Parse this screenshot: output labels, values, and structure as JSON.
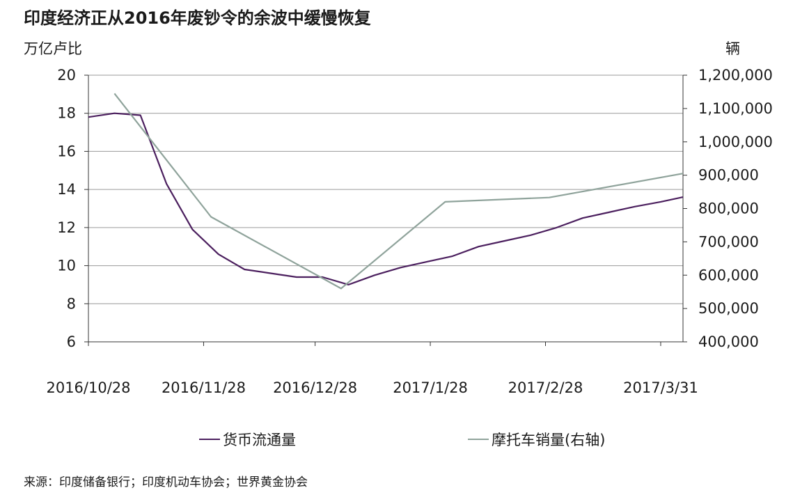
{
  "chart_data": {
    "type": "line",
    "title": "印度经济正从2016年废钞令的余波中缓慢恢复",
    "ylabel_left": "万亿卢比",
    "ylabel_right": "辆",
    "ylim_left": [
      6,
      20
    ],
    "yticks_left": [
      "6",
      "8",
      "10",
      "12",
      "14",
      "16",
      "18",
      "20"
    ],
    "ylim_right": [
      400000,
      1200000
    ],
    "yticks_right": [
      "400,000",
      "500,000",
      "600,000",
      "700,000",
      "800,000",
      "900,000",
      "1,000,000",
      "1,100,000",
      "1,200,000"
    ],
    "xlim": [
      "2016-10-28",
      "2017-04-06"
    ],
    "xticks": [
      {
        "date": "2016-10-28",
        "label": "2016/10/28"
      },
      {
        "date": "2016-11-28",
        "label": "2016/11/28"
      },
      {
        "date": "2016-12-28",
        "label": "2016/12/28"
      },
      {
        "date": "2017-01-28",
        "label": "2017/1/28"
      },
      {
        "date": "2017-02-28",
        "label": "2017/2/28"
      },
      {
        "date": "2017-03-31",
        "label": "2017/3/31"
      }
    ],
    "grid": true,
    "legend_position": "bottom",
    "series": [
      {
        "name": "货币流通量",
        "axis": "left",
        "color": "#4b1f5e",
        "points": [
          [
            "2016-10-28",
            17.8
          ],
          [
            "2016-11-04",
            18.0
          ],
          [
            "2016-11-11",
            17.9
          ],
          [
            "2016-11-18",
            14.3
          ],
          [
            "2016-11-25",
            11.9
          ],
          [
            "2016-12-02",
            10.6
          ],
          [
            "2016-12-09",
            9.8
          ],
          [
            "2016-12-16",
            9.6
          ],
          [
            "2016-12-23",
            9.4
          ],
          [
            "2016-12-30",
            9.4
          ],
          [
            "2017-01-06",
            9.0
          ],
          [
            "2017-01-13",
            9.5
          ],
          [
            "2017-01-20",
            9.9
          ],
          [
            "2017-01-27",
            10.2
          ],
          [
            "2017-02-03",
            10.5
          ],
          [
            "2017-02-10",
            11.0
          ],
          [
            "2017-02-17",
            11.3
          ],
          [
            "2017-02-24",
            11.6
          ],
          [
            "2017-03-03",
            12.0
          ],
          [
            "2017-03-10",
            12.5
          ],
          [
            "2017-03-17",
            12.8
          ],
          [
            "2017-03-24",
            13.1
          ],
          [
            "2017-03-31",
            13.35
          ],
          [
            "2017-04-06",
            13.6
          ]
        ]
      },
      {
        "name": "摩托车销量(右轴)",
        "axis": "right",
        "color": "#8fa39b",
        "points": [
          [
            "2016-11-04",
            1145000
          ],
          [
            "2016-11-30",
            775000
          ],
          [
            "2017-01-04",
            560000
          ],
          [
            "2017-02-01",
            820000
          ],
          [
            "2017-03-01",
            833000
          ],
          [
            "2017-04-06",
            905000
          ]
        ]
      }
    ]
  },
  "legend": {
    "items": [
      {
        "label": "货币流通量",
        "color": "#4b1f5e"
      },
      {
        "label": "摩托车销量(右轴)",
        "color": "#8fa39b"
      }
    ]
  },
  "source": "来源：印度储备银行；印度机动车协会；世界黄金协会"
}
